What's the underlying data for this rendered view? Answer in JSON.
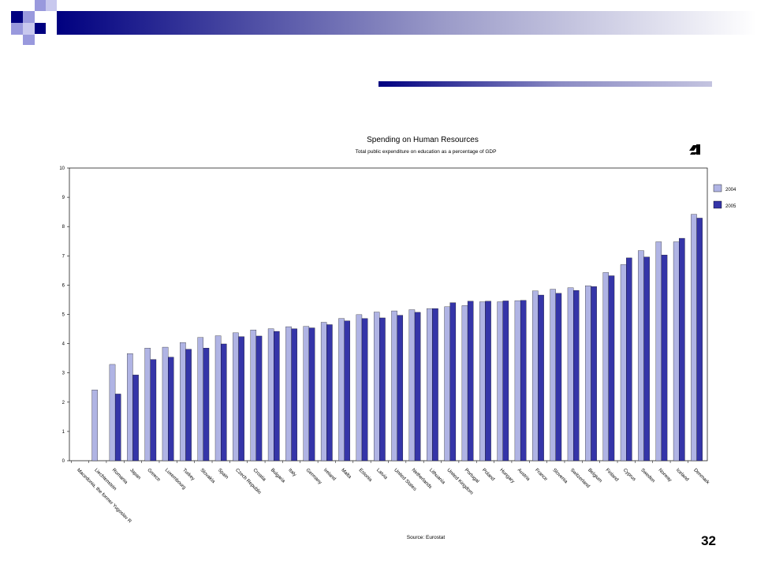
{
  "slide": {
    "number": "32"
  },
  "colors": {
    "navy": "#000080",
    "lavender": "#9999dd",
    "series_2004": "#b0b4e4",
    "series_2005": "#3535a8"
  },
  "logo_icon": "logo-glyph-icon",
  "chart_data": {
    "type": "bar",
    "title": "Spending on Human Resources",
    "subtitle": "Total public expenditure on education as a percentage of GDP",
    "source": "Source: Eurostat",
    "xlabel": "",
    "ylabel": "",
    "ylim": [
      0,
      10
    ],
    "yticks": [
      0,
      1,
      2,
      3,
      4,
      5,
      6,
      7,
      8,
      9,
      10
    ],
    "grid": false,
    "legend": "right",
    "categories": [
      "Macedonia, the former Yugoslav R",
      "Liechtenstein",
      "Romania",
      "Japan",
      "Greece",
      "Luxembourg",
      "Turkey",
      "Slovakia",
      "Spain",
      "Czech Republic",
      "Croatia",
      "Bulgaria",
      "Italy",
      "Germany",
      "Ireland",
      "Malta",
      "Estonia",
      "Latvia",
      "United States",
      "Netherlands",
      "Lithuania",
      "United Kingdom",
      "Portugal",
      "Poland",
      "Hungary",
      "Austria",
      "France",
      "Slovenia",
      "Switzerland",
      "Belgium",
      "Finland",
      "Cyprus",
      "Sweden",
      "Norway",
      "Iceland",
      "Denmark"
    ],
    "series": [
      {
        "name": "2004",
        "values": [
          null,
          2.42,
          3.29,
          3.66,
          3.85,
          3.88,
          4.04,
          4.21,
          4.27,
          4.37,
          4.47,
          4.51,
          4.58,
          4.59,
          4.73,
          4.86,
          4.99,
          5.08,
          5.12,
          5.16,
          5.2,
          5.26,
          5.3,
          5.43,
          5.43,
          5.47,
          5.8,
          5.86,
          5.91,
          5.98,
          6.43,
          6.7,
          7.18,
          7.48,
          7.48,
          8.42
        ]
      },
      {
        "name": "2005",
        "values": [
          null,
          null,
          2.28,
          2.93,
          3.46,
          3.54,
          3.81,
          3.85,
          3.99,
          4.24,
          4.26,
          4.42,
          4.51,
          4.54,
          4.65,
          4.78,
          4.86,
          4.88,
          4.97,
          5.07,
          5.2,
          5.4,
          5.45,
          5.45,
          5.46,
          5.48,
          5.66,
          5.72,
          5.82,
          5.95,
          6.32,
          6.93,
          6.96,
          7.03,
          7.6,
          8.29
        ]
      }
    ]
  }
}
